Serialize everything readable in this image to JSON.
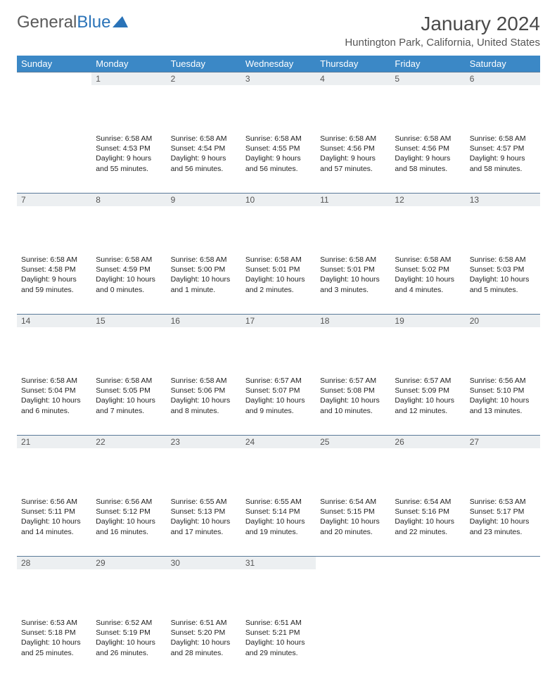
{
  "brand": {
    "word1": "General",
    "word2": "Blue"
  },
  "title": "January 2024",
  "location": "Huntington Park, California, United States",
  "colors": {
    "header_bg": "#3b88c6",
    "daynum_bg": "#eceff1",
    "rule": "#5a7a99",
    "brand_gray": "#5a5a5a",
    "brand_blue": "#2a73b8"
  },
  "week_headers": [
    "Sunday",
    "Monday",
    "Tuesday",
    "Wednesday",
    "Thursday",
    "Friday",
    "Saturday"
  ],
  "weeks": [
    [
      null,
      {
        "n": "1",
        "sr": "Sunrise: 6:58 AM",
        "ss": "Sunset: 4:53 PM",
        "dl": "Daylight: 9 hours and 55 minutes."
      },
      {
        "n": "2",
        "sr": "Sunrise: 6:58 AM",
        "ss": "Sunset: 4:54 PM",
        "dl": "Daylight: 9 hours and 56 minutes."
      },
      {
        "n": "3",
        "sr": "Sunrise: 6:58 AM",
        "ss": "Sunset: 4:55 PM",
        "dl": "Daylight: 9 hours and 56 minutes."
      },
      {
        "n": "4",
        "sr": "Sunrise: 6:58 AM",
        "ss": "Sunset: 4:56 PM",
        "dl": "Daylight: 9 hours and 57 minutes."
      },
      {
        "n": "5",
        "sr": "Sunrise: 6:58 AM",
        "ss": "Sunset: 4:56 PM",
        "dl": "Daylight: 9 hours and 58 minutes."
      },
      {
        "n": "6",
        "sr": "Sunrise: 6:58 AM",
        "ss": "Sunset: 4:57 PM",
        "dl": "Daylight: 9 hours and 58 minutes."
      }
    ],
    [
      {
        "n": "7",
        "sr": "Sunrise: 6:58 AM",
        "ss": "Sunset: 4:58 PM",
        "dl": "Daylight: 9 hours and 59 minutes."
      },
      {
        "n": "8",
        "sr": "Sunrise: 6:58 AM",
        "ss": "Sunset: 4:59 PM",
        "dl": "Daylight: 10 hours and 0 minutes."
      },
      {
        "n": "9",
        "sr": "Sunrise: 6:58 AM",
        "ss": "Sunset: 5:00 PM",
        "dl": "Daylight: 10 hours and 1 minute."
      },
      {
        "n": "10",
        "sr": "Sunrise: 6:58 AM",
        "ss": "Sunset: 5:01 PM",
        "dl": "Daylight: 10 hours and 2 minutes."
      },
      {
        "n": "11",
        "sr": "Sunrise: 6:58 AM",
        "ss": "Sunset: 5:01 PM",
        "dl": "Daylight: 10 hours and 3 minutes."
      },
      {
        "n": "12",
        "sr": "Sunrise: 6:58 AM",
        "ss": "Sunset: 5:02 PM",
        "dl": "Daylight: 10 hours and 4 minutes."
      },
      {
        "n": "13",
        "sr": "Sunrise: 6:58 AM",
        "ss": "Sunset: 5:03 PM",
        "dl": "Daylight: 10 hours and 5 minutes."
      }
    ],
    [
      {
        "n": "14",
        "sr": "Sunrise: 6:58 AM",
        "ss": "Sunset: 5:04 PM",
        "dl": "Daylight: 10 hours and 6 minutes."
      },
      {
        "n": "15",
        "sr": "Sunrise: 6:58 AM",
        "ss": "Sunset: 5:05 PM",
        "dl": "Daylight: 10 hours and 7 minutes."
      },
      {
        "n": "16",
        "sr": "Sunrise: 6:58 AM",
        "ss": "Sunset: 5:06 PM",
        "dl": "Daylight: 10 hours and 8 minutes."
      },
      {
        "n": "17",
        "sr": "Sunrise: 6:57 AM",
        "ss": "Sunset: 5:07 PM",
        "dl": "Daylight: 10 hours and 9 minutes."
      },
      {
        "n": "18",
        "sr": "Sunrise: 6:57 AM",
        "ss": "Sunset: 5:08 PM",
        "dl": "Daylight: 10 hours and 10 minutes."
      },
      {
        "n": "19",
        "sr": "Sunrise: 6:57 AM",
        "ss": "Sunset: 5:09 PM",
        "dl": "Daylight: 10 hours and 12 minutes."
      },
      {
        "n": "20",
        "sr": "Sunrise: 6:56 AM",
        "ss": "Sunset: 5:10 PM",
        "dl": "Daylight: 10 hours and 13 minutes."
      }
    ],
    [
      {
        "n": "21",
        "sr": "Sunrise: 6:56 AM",
        "ss": "Sunset: 5:11 PM",
        "dl": "Daylight: 10 hours and 14 minutes."
      },
      {
        "n": "22",
        "sr": "Sunrise: 6:56 AM",
        "ss": "Sunset: 5:12 PM",
        "dl": "Daylight: 10 hours and 16 minutes."
      },
      {
        "n": "23",
        "sr": "Sunrise: 6:55 AM",
        "ss": "Sunset: 5:13 PM",
        "dl": "Daylight: 10 hours and 17 minutes."
      },
      {
        "n": "24",
        "sr": "Sunrise: 6:55 AM",
        "ss": "Sunset: 5:14 PM",
        "dl": "Daylight: 10 hours and 19 minutes."
      },
      {
        "n": "25",
        "sr": "Sunrise: 6:54 AM",
        "ss": "Sunset: 5:15 PM",
        "dl": "Daylight: 10 hours and 20 minutes."
      },
      {
        "n": "26",
        "sr": "Sunrise: 6:54 AM",
        "ss": "Sunset: 5:16 PM",
        "dl": "Daylight: 10 hours and 22 minutes."
      },
      {
        "n": "27",
        "sr": "Sunrise: 6:53 AM",
        "ss": "Sunset: 5:17 PM",
        "dl": "Daylight: 10 hours and 23 minutes."
      }
    ],
    [
      {
        "n": "28",
        "sr": "Sunrise: 6:53 AM",
        "ss": "Sunset: 5:18 PM",
        "dl": "Daylight: 10 hours and 25 minutes."
      },
      {
        "n": "29",
        "sr": "Sunrise: 6:52 AM",
        "ss": "Sunset: 5:19 PM",
        "dl": "Daylight: 10 hours and 26 minutes."
      },
      {
        "n": "30",
        "sr": "Sunrise: 6:51 AM",
        "ss": "Sunset: 5:20 PM",
        "dl": "Daylight: 10 hours and 28 minutes."
      },
      {
        "n": "31",
        "sr": "Sunrise: 6:51 AM",
        "ss": "Sunset: 5:21 PM",
        "dl": "Daylight: 10 hours and 29 minutes."
      },
      null,
      null,
      null
    ]
  ]
}
